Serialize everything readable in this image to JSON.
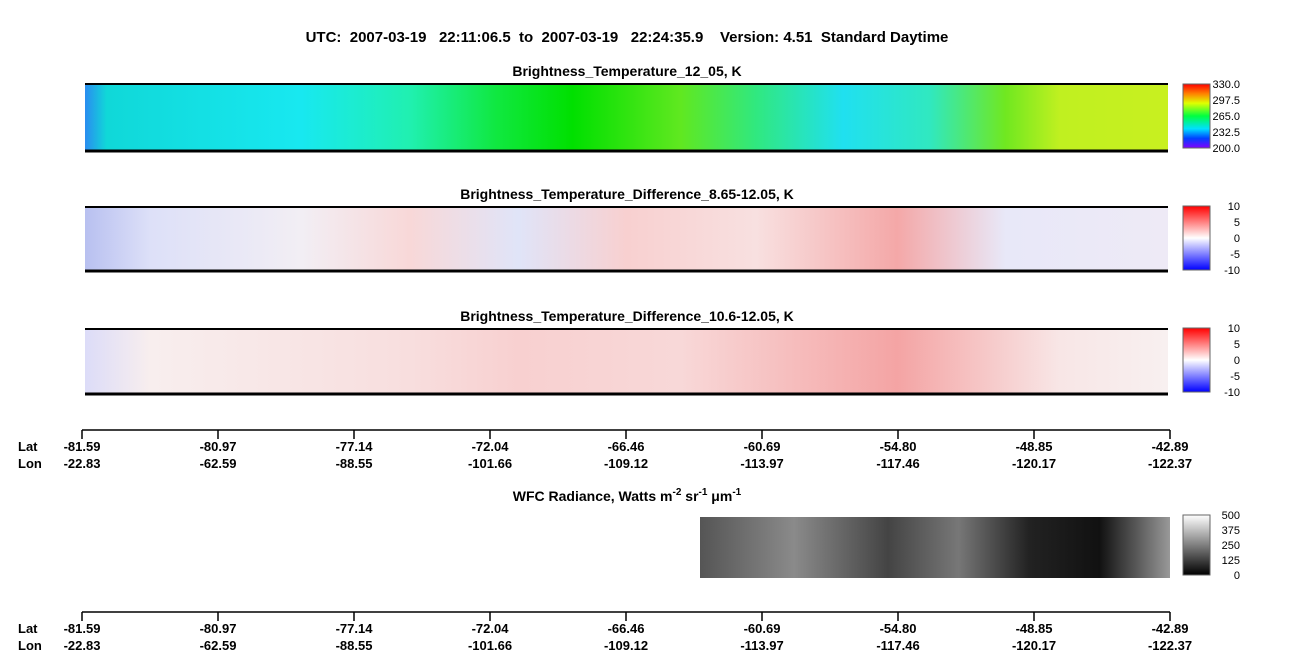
{
  "title": "UTC:  2007-03-19   22:11:06.5  to  2007-03-19   22:24:35.9    Version: 4.51  Standard Daytime",
  "panels": [
    {
      "title": "Brightness_Temperature_12_05, K",
      "colorbar": [
        "330.0",
        "297.5",
        "265.0",
        "232.5",
        "200.0"
      ]
    },
    {
      "title": "Brightness_Temperature_Difference_8.65-12.05, K",
      "colorbar": [
        "10",
        "5",
        "0",
        "-5",
        "-10"
      ]
    },
    {
      "title": "Brightness_Temperature_Difference_10.6-12.05, K",
      "colorbar": [
        "10",
        "5",
        "0",
        "-5",
        "-10"
      ]
    }
  ],
  "axes": [
    {
      "lat_label": "Lat",
      "lon_label": "Lon",
      "lat": [
        "-81.59",
        "-80.97",
        "-77.14",
        "-72.04",
        "-66.46",
        "-60.69",
        "-54.80",
        "-48.85",
        "-42.89"
      ],
      "lon": [
        "-22.83",
        "-62.59",
        "-88.55",
        "-101.66",
        "-109.12",
        "-113.97",
        "-117.46",
        "-120.17",
        "-122.37"
      ]
    },
    {
      "lat_label": "Lat",
      "lon_label": "Lon",
      "lat": [
        "-81.59",
        "-80.97",
        "-77.14",
        "-72.04",
        "-66.46",
        "-60.69",
        "-54.80",
        "-48.85",
        "-42.89"
      ],
      "lon": [
        "-22.83",
        "-62.59",
        "-88.55",
        "-101.66",
        "-109.12",
        "-113.97",
        "-117.46",
        "-120.17",
        "-122.37"
      ]
    }
  ],
  "wfc": {
    "title_parts": [
      "WFC Radiance, Watts m",
      "-2",
      " sr",
      "-1",
      " μm",
      "-1"
    ],
    "colorbar": [
      "500",
      "375",
      "250",
      "125",
      "0"
    ]
  }
}
